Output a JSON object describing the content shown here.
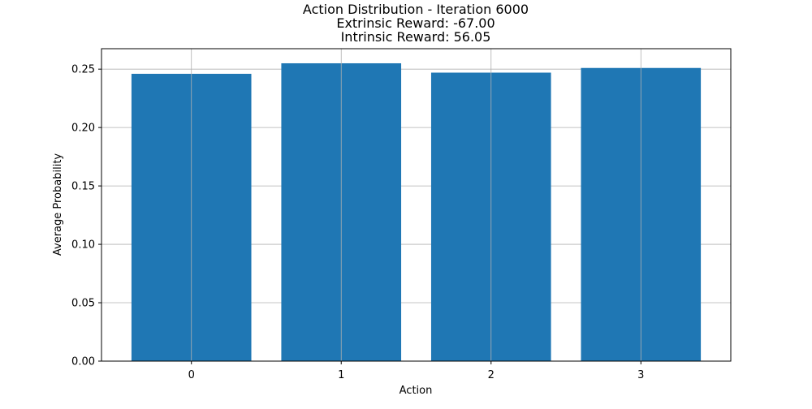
{
  "chart_data": {
    "type": "bar",
    "title": [
      "Action Distribution - Iteration 6000",
      "Extrinsic Reward: -67.00",
      "Intrinsic Reward: 56.05"
    ],
    "xlabel": "Action",
    "ylabel": "Average Probability",
    "categories": [
      "0",
      "1",
      "2",
      "3"
    ],
    "values": [
      0.246,
      0.255,
      0.247,
      0.251
    ],
    "ylim": [
      0,
      0.2675
    ],
    "yticks": [
      0.0,
      0.05,
      0.1,
      0.15,
      0.2,
      0.25
    ],
    "ytick_labels": [
      "0.00",
      "0.05",
      "0.10",
      "0.15",
      "0.20",
      "0.25"
    ],
    "grid": true,
    "colors": {
      "bar": "#1f77b4",
      "grid": "#b0b0b0",
      "axis": "#000000"
    }
  }
}
